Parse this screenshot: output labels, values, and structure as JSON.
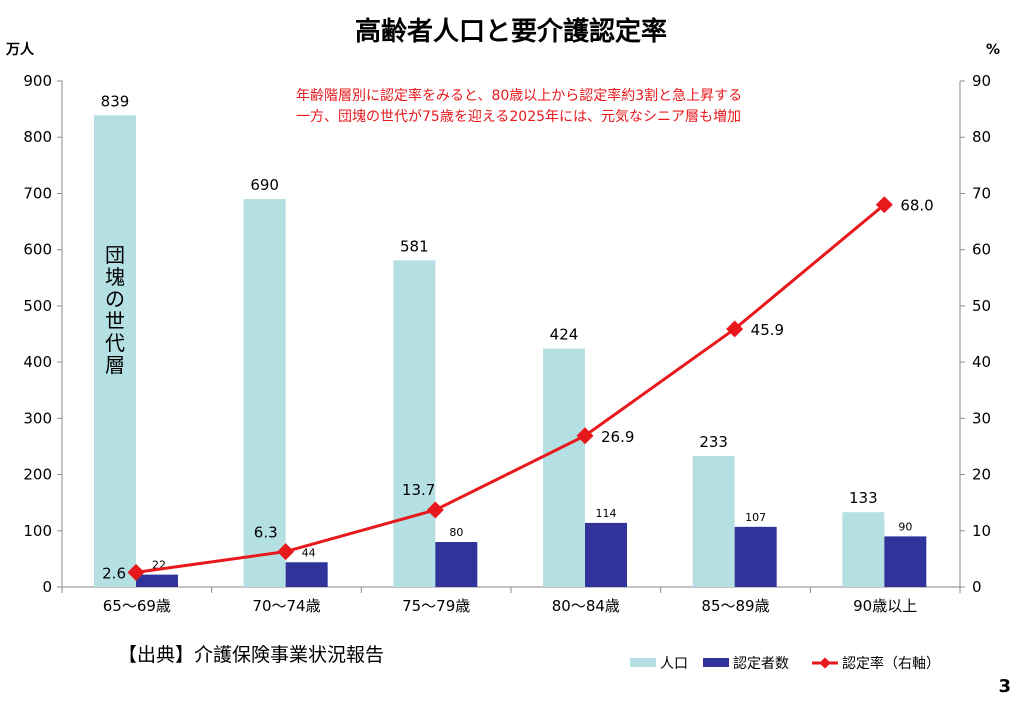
{
  "chart_data": {
    "type": "bar",
    "title": "高齢者人口と要介護認定率",
    "ylabel_left": "万人",
    "ylabel_right": "%",
    "categories": [
      "65〜69歳",
      "70〜74歳",
      "75〜79歳",
      "80〜84歳",
      "85〜89歳",
      "90歳以上"
    ],
    "ylim_left": [
      0,
      900
    ],
    "yticks_left": [
      "0",
      "100",
      "200",
      "300",
      "400",
      "500",
      "600",
      "700",
      "800",
      "900"
    ],
    "ylim_right": [
      0,
      90
    ],
    "yticks_right": [
      "0",
      "10",
      "20",
      "30",
      "40",
      "50",
      "60",
      "70",
      "80",
      "90"
    ],
    "series": [
      {
        "name": "人口",
        "type": "bar",
        "axis": "left",
        "color": "#b4dfe3",
        "values": [
          839,
          690,
          581,
          424,
          233,
          133
        ],
        "labels": [
          "839",
          "690",
          "581",
          "424",
          "233",
          "133"
        ]
      },
      {
        "name": "認定者数",
        "type": "bar",
        "axis": "left",
        "color": "#303399",
        "values": [
          22,
          44,
          80,
          114,
          107,
          90
        ],
        "labels": [
          "22",
          "44",
          "80",
          "114",
          "107",
          "90"
        ]
      },
      {
        "name": "認定率（右軸）",
        "type": "line",
        "axis": "right",
        "color": "#e8191c",
        "values": [
          2.6,
          6.3,
          13.7,
          26.9,
          45.9,
          68.0
        ],
        "labels": [
          "2.6",
          "6.3",
          "13.7",
          "26.9",
          "45.9",
          "68.0"
        ]
      }
    ],
    "annotation": {
      "lines": [
        "年齢階層別に認定率をみると、80歳以上から認定率約3割と急上昇する",
        "一方、団塊の世代が75歳を迎える2025年には、元気なシニア層も増加"
      ],
      "color": "#e8191c"
    },
    "bar_inner_label": "団塊の世代層",
    "grid": false,
    "legend_position": "bottom-right"
  },
  "source_note": "【出典】介護保険事業状況報告",
  "page_number": "3"
}
